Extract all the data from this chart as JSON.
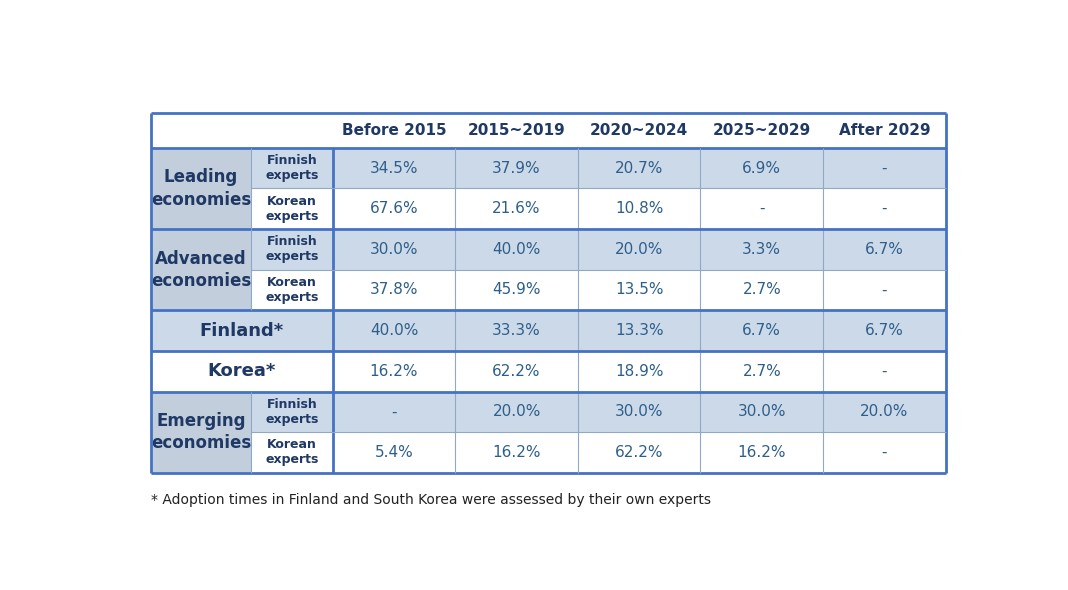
{
  "columns": [
    "Before 2015",
    "2015~2019",
    "2020~2024",
    "2025~2029",
    "After 2029"
  ],
  "rows": [
    {
      "group": "Leading\neconomies",
      "sub": "Finnish\nexperts",
      "values": [
        "34.5%",
        "37.9%",
        "20.7%",
        "6.9%",
        "-"
      ],
      "row_bg": "#ccd9e8",
      "group_bg": "#c2cedc",
      "single": false
    },
    {
      "group": "",
      "sub": "Korean\nexperts",
      "values": [
        "67.6%",
        "21.6%",
        "10.8%",
        "-",
        "-"
      ],
      "row_bg": "#ffffff",
      "group_bg": "#c2cedc",
      "single": false
    },
    {
      "group": "Advanced\neconomies",
      "sub": "Finnish\nexperts",
      "values": [
        "30.0%",
        "40.0%",
        "20.0%",
        "3.3%",
        "6.7%"
      ],
      "row_bg": "#ccd9e8",
      "group_bg": "#c2cedc",
      "single": false
    },
    {
      "group": "",
      "sub": "Korean\nexperts",
      "values": [
        "37.8%",
        "45.9%",
        "13.5%",
        "2.7%",
        "-"
      ],
      "row_bg": "#ffffff",
      "group_bg": "#c2cedc",
      "single": false
    },
    {
      "group": "Finland*",
      "sub": "",
      "values": [
        "40.0%",
        "33.3%",
        "13.3%",
        "6.7%",
        "6.7%"
      ],
      "row_bg": "#ccd9e8",
      "group_bg": "#ccd9e8",
      "single": true
    },
    {
      "group": "Korea*",
      "sub": "",
      "values": [
        "16.2%",
        "62.2%",
        "18.9%",
        "2.7%",
        "-"
      ],
      "row_bg": "#ffffff",
      "group_bg": "#ffffff",
      "single": true
    },
    {
      "group": "Emerging\neconomies",
      "sub": "Finnish\nexperts",
      "values": [
        "-",
        "20.0%",
        "30.0%",
        "30.0%",
        "20.0%"
      ],
      "row_bg": "#ccd9e8",
      "group_bg": "#c2cedc",
      "single": false
    },
    {
      "group": "",
      "sub": "Korean\nexperts",
      "values": [
        "5.4%",
        "16.2%",
        "62.2%",
        "16.2%",
        "-"
      ],
      "row_bg": "#ffffff",
      "group_bg": "#c2cedc",
      "single": false
    }
  ],
  "header_color": "#1f3864",
  "group_text_color": "#1f3864",
  "sub_text_color": "#1f3864",
  "value_text_color": "#2e5f8a",
  "border_color": "#4472c4",
  "thin_line_color": "#90a8c8",
  "footnote": "* Adoption times in Finland and South Korea were assessed by their own experts"
}
